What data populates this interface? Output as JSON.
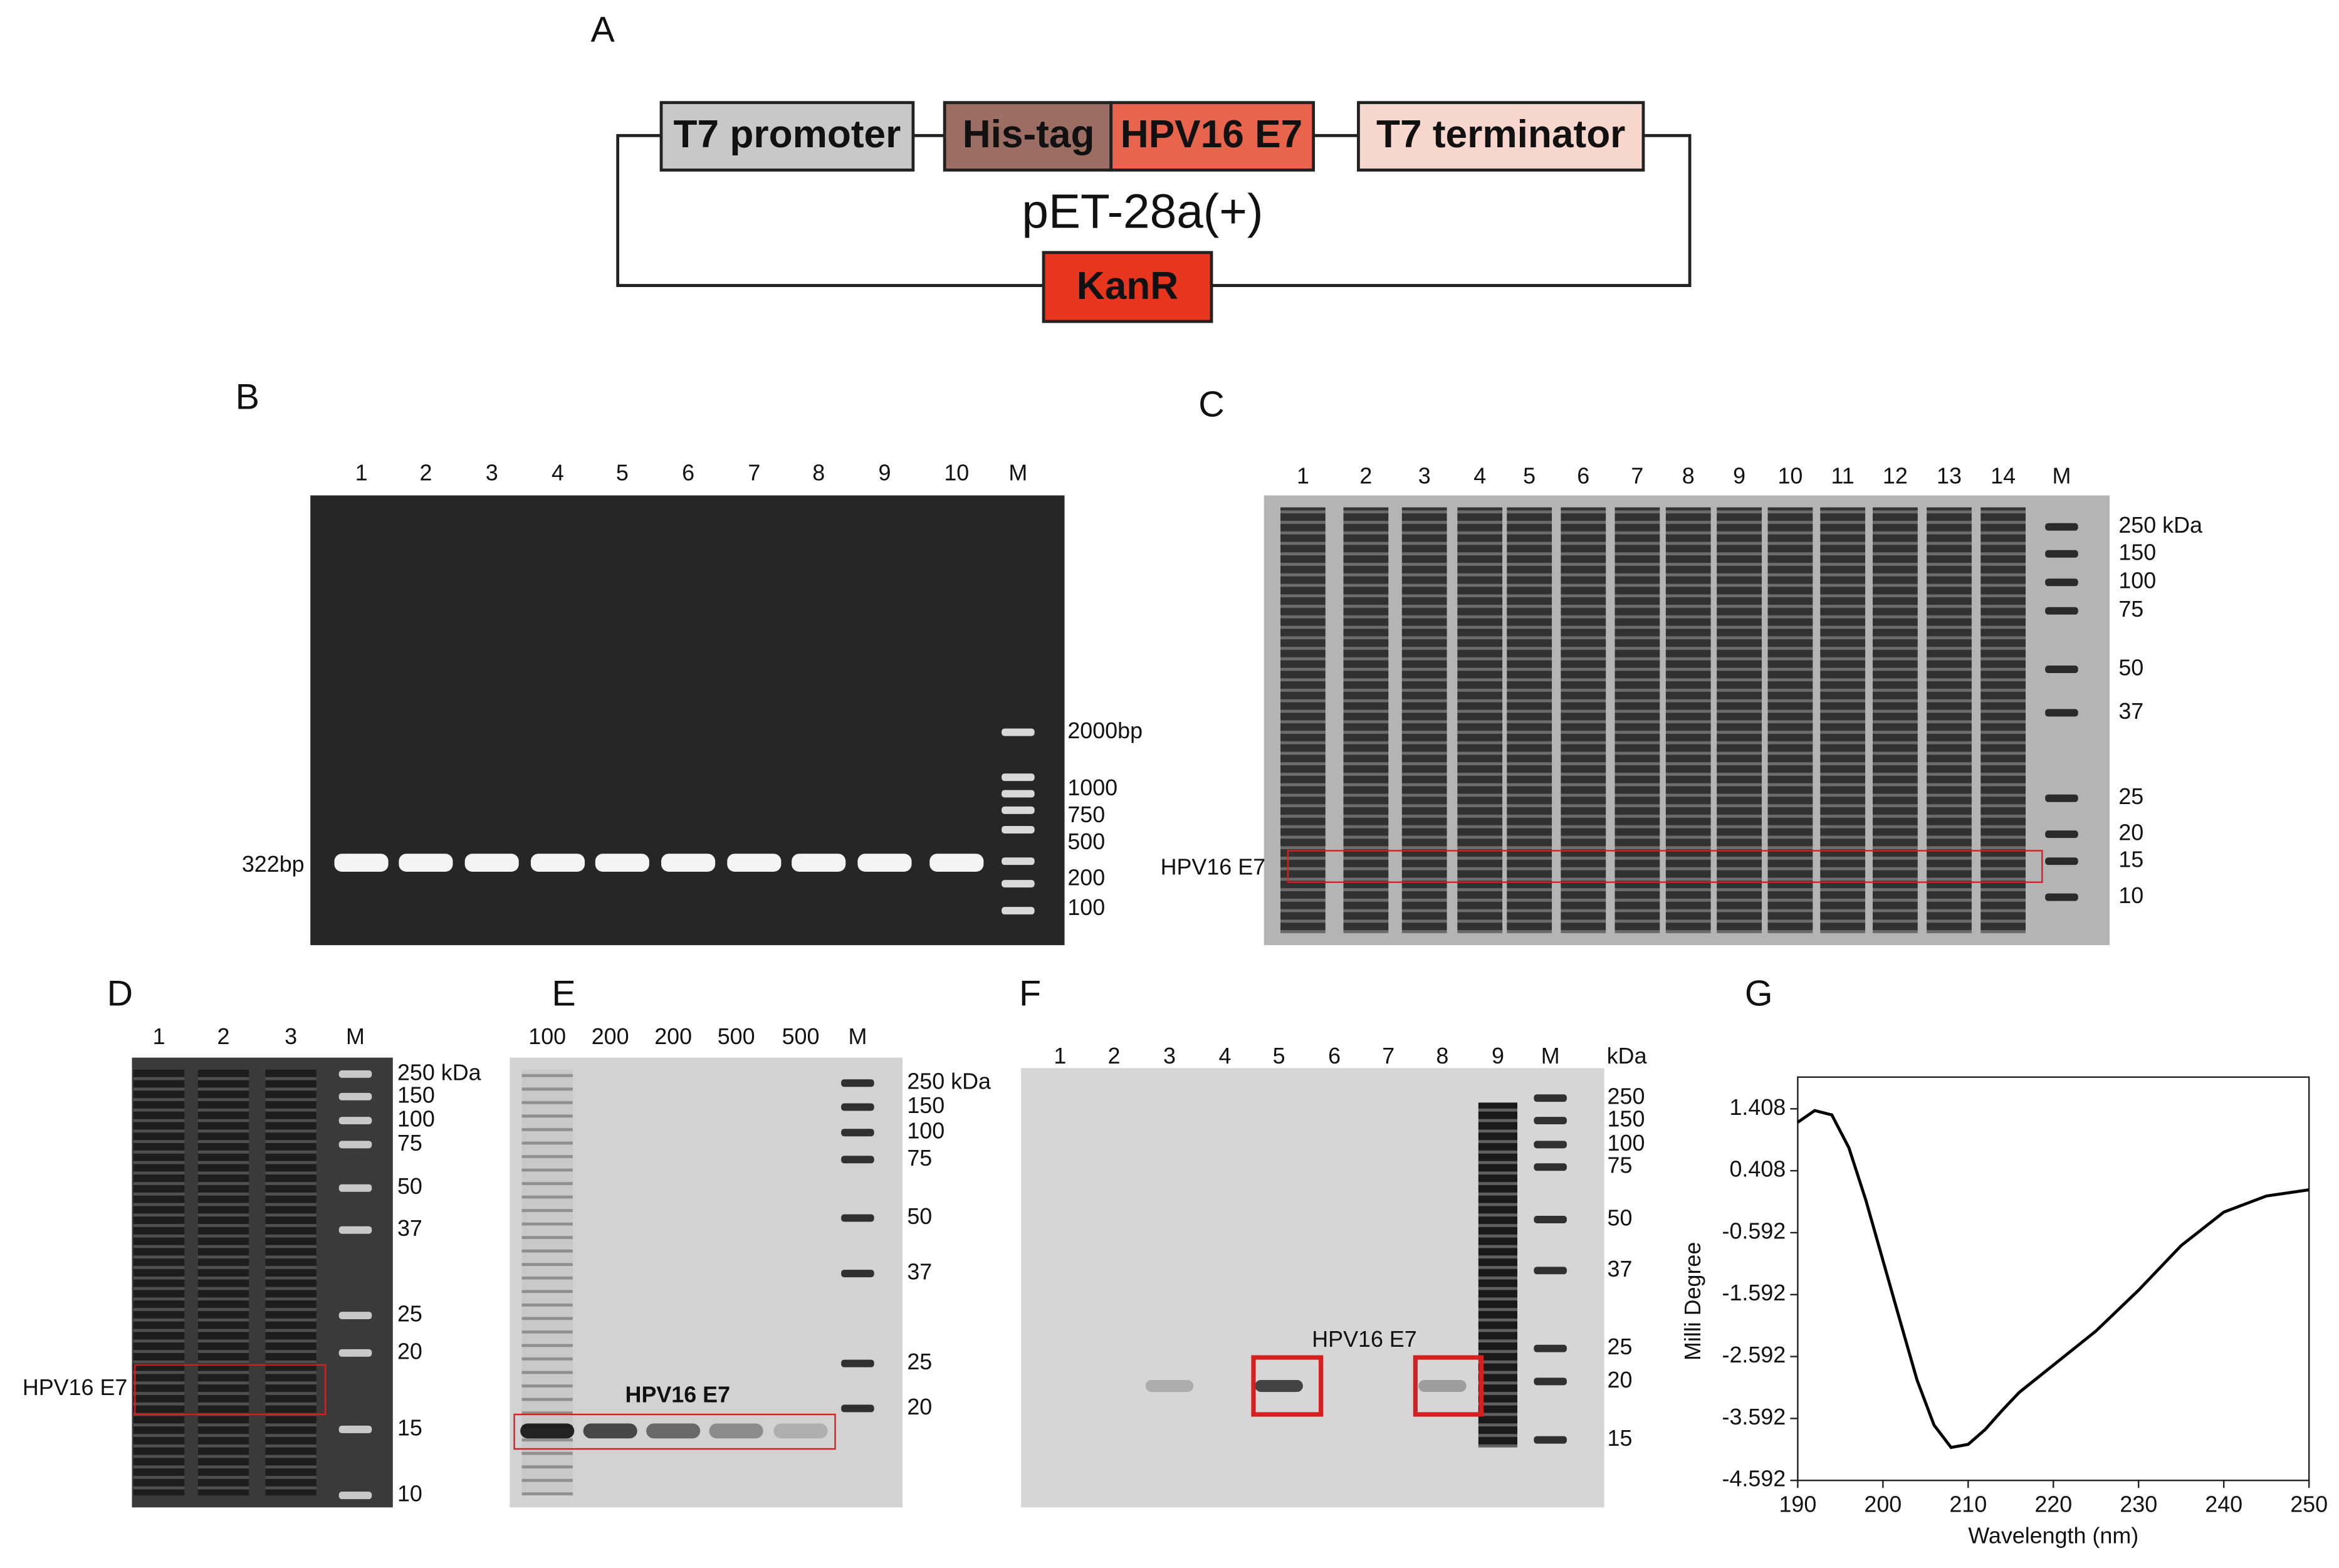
{
  "panel_a": {
    "label": "A",
    "parts": [
      "T7 promoter",
      "His-tag",
      "HPV16 E7",
      "T7 terminator"
    ],
    "backbone": "pET-28a(+)",
    "resistance": "KanR"
  },
  "panel_b": {
    "label": "B",
    "lanes": [
      "1",
      "2",
      "3",
      "4",
      "5",
      "6",
      "7",
      "8",
      "9",
      "10",
      "M"
    ],
    "markers": [
      "2000bp",
      "1000",
      "750",
      "500",
      "200",
      "100"
    ],
    "band_label": "322bp"
  },
  "panel_c": {
    "label": "C",
    "lanes": [
      "1",
      "2",
      "3",
      "4",
      "5",
      "6",
      "7",
      "8",
      "9",
      "10",
      "11",
      "12",
      "13",
      "14",
      "M"
    ],
    "markers": [
      "250 kDa",
      "150",
      "100",
      "75",
      "50",
      "37",
      "25",
      "20",
      "15",
      "10"
    ],
    "band_label": "HPV16 E7"
  },
  "panel_d": {
    "label": "D",
    "lanes": [
      "1",
      "2",
      "3",
      "M"
    ],
    "markers": [
      "250 kDa",
      "150",
      "100",
      "75",
      "50",
      "37",
      "25",
      "20",
      "15",
      "10"
    ],
    "band_label": "HPV16 E7"
  },
  "panel_e": {
    "label": "E",
    "lanes": [
      "100",
      "200",
      "200",
      "500",
      "500",
      "M"
    ],
    "markers": [
      "250 kDa",
      "150",
      "100",
      "75",
      "50",
      "37",
      "25",
      "20"
    ],
    "band_label": "HPV16 E7"
  },
  "panel_f": {
    "label": "F",
    "lanes": [
      "1",
      "2",
      "3",
      "4",
      "5",
      "6",
      "7",
      "8",
      "9",
      "M"
    ],
    "unit": "kDa",
    "markers": [
      "250",
      "150",
      "100",
      "75",
      "50",
      "37",
      "25",
      "20",
      "15"
    ],
    "band_label": "HPV16 E7"
  },
  "chart_data": {
    "type": "line",
    "panel_label": "G",
    "x_label": "Wavelength (nm)",
    "y_label": "Milli Degree",
    "x": [
      190,
      192,
      194,
      196,
      198,
      200,
      202,
      204,
      206,
      208,
      210,
      212,
      214,
      216,
      220,
      225,
      230,
      235,
      240,
      245,
      250
    ],
    "values": [
      1.19,
      1.38,
      1.31,
      0.78,
      -0.07,
      -1.04,
      -2.01,
      -2.97,
      -3.7,
      -4.06,
      -4.01,
      -3.77,
      -3.46,
      -3.17,
      -2.73,
      -2.18,
      -1.52,
      -0.8,
      -0.26,
      0.0,
      0.1
    ],
    "color": "#000000",
    "xlim": [
      190,
      250
    ],
    "xticks": [
      190,
      200,
      210,
      220,
      230,
      240,
      250
    ],
    "ylim": [
      -4.592,
      1.92
    ],
    "yticks": [
      1.408,
      0.408,
      -0.592,
      -1.592,
      -2.592,
      -3.592,
      -4.592
    ]
  }
}
